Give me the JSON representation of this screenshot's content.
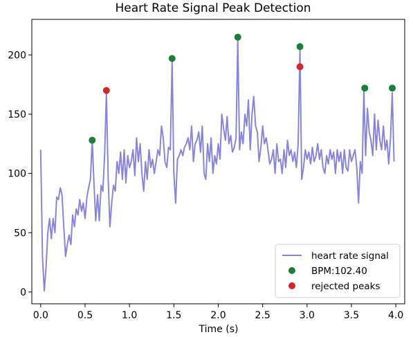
{
  "chart_data": {
    "type": "line",
    "title": "Heart Rate Signal Peak Detection",
    "xlabel": "Time (s)",
    "ylabel": "",
    "xlim": [
      -0.1,
      4.1
    ],
    "ylim": [
      -10,
      230
    ],
    "xticks": [
      0.0,
      0.5,
      1.0,
      1.5,
      2.0,
      2.5,
      3.0,
      3.5,
      4.0
    ],
    "xtick_labels": [
      "0.0",
      "0.5",
      "1.0",
      "1.5",
      "2.0",
      "2.5",
      "3.0",
      "3.5",
      "4.0"
    ],
    "yticks": [
      0,
      50,
      100,
      150,
      200
    ],
    "ytick_labels": [
      "0",
      "50",
      "100",
      "150",
      "200"
    ],
    "grid": false,
    "legend_position": "bottom-right",
    "series": [
      {
        "name": "heart rate signal",
        "kind": "line",
        "color": "#8884d8",
        "points": [
          [
            0.0,
            120
          ],
          [
            0.02,
            30
          ],
          [
            0.04,
            1
          ],
          [
            0.06,
            20
          ],
          [
            0.08,
            50
          ],
          [
            0.1,
            62
          ],
          [
            0.12,
            45
          ],
          [
            0.14,
            62
          ],
          [
            0.16,
            50
          ],
          [
            0.18,
            80
          ],
          [
            0.2,
            78
          ],
          [
            0.22,
            88
          ],
          [
            0.24,
            82
          ],
          [
            0.26,
            55
          ],
          [
            0.28,
            30
          ],
          [
            0.3,
            40
          ],
          [
            0.32,
            48
          ],
          [
            0.34,
            40
          ],
          [
            0.36,
            65
          ],
          [
            0.38,
            55
          ],
          [
            0.4,
            70
          ],
          [
            0.42,
            65
          ],
          [
            0.44,
            78
          ],
          [
            0.46,
            68
          ],
          [
            0.48,
            75
          ],
          [
            0.5,
            62
          ],
          [
            0.52,
            80
          ],
          [
            0.54,
            88
          ],
          [
            0.56,
            95
          ],
          [
            0.58,
            128
          ],
          [
            0.6,
            92
          ],
          [
            0.62,
            60
          ],
          [
            0.64,
            82
          ],
          [
            0.66,
            60
          ],
          [
            0.68,
            90
          ],
          [
            0.7,
            85
          ],
          [
            0.72,
            115
          ],
          [
            0.74,
            168
          ],
          [
            0.76,
            95
          ],
          [
            0.78,
            55
          ],
          [
            0.8,
            75
          ],
          [
            0.82,
            90
          ],
          [
            0.84,
            85
          ],
          [
            0.86,
            110
          ],
          [
            0.88,
            100
          ],
          [
            0.9,
            118
          ],
          [
            0.92,
            95
          ],
          [
            0.94,
            120
          ],
          [
            0.96,
            92
          ],
          [
            0.98,
            115
          ],
          [
            1.0,
            105
          ],
          [
            1.02,
            110
          ],
          [
            1.04,
            120
          ],
          [
            1.06,
            98
          ],
          [
            1.08,
            130
          ],
          [
            1.1,
            110
          ],
          [
            1.12,
            125
          ],
          [
            1.14,
            100
          ],
          [
            1.16,
            85
          ],
          [
            1.18,
            110
          ],
          [
            1.2,
            95
          ],
          [
            1.22,
            120
          ],
          [
            1.24,
            105
          ],
          [
            1.26,
            112
          ],
          [
            1.28,
            100
          ],
          [
            1.3,
            110
          ],
          [
            1.32,
            120
          ],
          [
            1.34,
            115
          ],
          [
            1.36,
            140
          ],
          [
            1.38,
            130
          ],
          [
            1.4,
            110
          ],
          [
            1.42,
            105
          ],
          [
            1.44,
            122
          ],
          [
            1.46,
            120
          ],
          [
            1.48,
            195
          ],
          [
            1.5,
            100
          ],
          [
            1.52,
            75
          ],
          [
            1.54,
            112
          ],
          [
            1.56,
            115
          ],
          [
            1.58,
            120
          ],
          [
            1.6,
            115
          ],
          [
            1.62,
            122
          ],
          [
            1.64,
            125
          ],
          [
            1.66,
            130
          ],
          [
            1.68,
            120
          ],
          [
            1.7,
            140
          ],
          [
            1.72,
            110
          ],
          [
            1.74,
            125
          ],
          [
            1.76,
            128
          ],
          [
            1.78,
            135
          ],
          [
            1.8,
            118
          ],
          [
            1.82,
            140
          ],
          [
            1.84,
            100
          ],
          [
            1.86,
            95
          ],
          [
            1.88,
            125
          ],
          [
            1.9,
            110
          ],
          [
            1.92,
            130
          ],
          [
            1.94,
            100
          ],
          [
            1.96,
            115
          ],
          [
            1.98,
            108
          ],
          [
            2.0,
            125
          ],
          [
            2.02,
            112
          ],
          [
            2.04,
            150
          ],
          [
            2.06,
            138
          ],
          [
            2.08,
            128
          ],
          [
            2.1,
            148
          ],
          [
            2.12,
            125
          ],
          [
            2.14,
            132
          ],
          [
            2.16,
            118
          ],
          [
            2.18,
            122
          ],
          [
            2.2,
            130
          ],
          [
            2.22,
            213
          ],
          [
            2.24,
            120
          ],
          [
            2.26,
            135
          ],
          [
            2.28,
            125
          ],
          [
            2.3,
            150
          ],
          [
            2.32,
            140
          ],
          [
            2.34,
            162
          ],
          [
            2.36,
            120
          ],
          [
            2.38,
            150
          ],
          [
            2.4,
            165
          ],
          [
            2.42,
            140
          ],
          [
            2.44,
            135
          ],
          [
            2.46,
            110
          ],
          [
            2.48,
            122
          ],
          [
            2.5,
            140
          ],
          [
            2.52,
            125
          ],
          [
            2.54,
            130
          ],
          [
            2.56,
            120
          ],
          [
            2.58,
            108
          ],
          [
            2.6,
            112
          ],
          [
            2.62,
            120
          ],
          [
            2.64,
            100
          ],
          [
            2.66,
            125
          ],
          [
            2.68,
            110
          ],
          [
            2.7,
            112
          ],
          [
            2.72,
            100
          ],
          [
            2.74,
            120
          ],
          [
            2.76,
            105
          ],
          [
            2.78,
            128
          ],
          [
            2.8,
            115
          ],
          [
            2.82,
            120
          ],
          [
            2.84,
            110
          ],
          [
            2.86,
            118
          ],
          [
            2.88,
            105
          ],
          [
            2.9,
            125
          ],
          [
            2.92,
            205
          ],
          [
            2.94,
            95
          ],
          [
            2.96,
            105
          ],
          [
            2.98,
            120
          ],
          [
            3.0,
            112
          ],
          [
            3.02,
            118
          ],
          [
            3.04,
            108
          ],
          [
            3.06,
            122
          ],
          [
            3.08,
            110
          ],
          [
            3.1,
            115
          ],
          [
            3.12,
            125
          ],
          [
            3.14,
            112
          ],
          [
            3.16,
            120
          ],
          [
            3.18,
            105
          ],
          [
            3.2,
            100
          ],
          [
            3.22,
            115
          ],
          [
            3.24,
            108
          ],
          [
            3.26,
            120
          ],
          [
            3.28,
            112
          ],
          [
            3.3,
            118
          ],
          [
            3.32,
            100
          ],
          [
            3.34,
            120
          ],
          [
            3.36,
            110
          ],
          [
            3.38,
            118
          ],
          [
            3.4,
            100
          ],
          [
            3.42,
            120
          ],
          [
            3.44,
            105
          ],
          [
            3.46,
            102
          ],
          [
            3.48,
            120
          ],
          [
            3.5,
            110
          ],
          [
            3.52,
            115
          ],
          [
            3.54,
            120
          ],
          [
            3.56,
            105
          ],
          [
            3.58,
            75
          ],
          [
            3.6,
            110
          ],
          [
            3.62,
            100
          ],
          [
            3.64,
            170
          ],
          [
            3.66,
            115
          ],
          [
            3.68,
            155
          ],
          [
            3.7,
            135
          ],
          [
            3.72,
            128
          ],
          [
            3.74,
            115
          ],
          [
            3.76,
            150
          ],
          [
            3.78,
            120
          ],
          [
            3.8,
            145
          ],
          [
            3.82,
            128
          ],
          [
            3.84,
            120
          ],
          [
            3.86,
            140
          ],
          [
            3.88,
            120
          ],
          [
            3.9,
            128
          ],
          [
            3.92,
            108
          ],
          [
            3.94,
            130
          ],
          [
            3.96,
            168
          ],
          [
            3.98,
            110
          ]
        ]
      },
      {
        "name": "BPM:102.40",
        "kind": "scatter",
        "color": "#1a7f37",
        "points": [
          [
            0.58,
            128
          ],
          [
            1.48,
            197
          ],
          [
            2.22,
            215
          ],
          [
            2.92,
            207
          ],
          [
            3.65,
            172
          ],
          [
            3.96,
            172
          ]
        ]
      },
      {
        "name": "rejected peaks",
        "kind": "scatter",
        "color": "#d62728",
        "points": [
          [
            0.74,
            170
          ],
          [
            2.92,
            190
          ]
        ]
      }
    ]
  }
}
